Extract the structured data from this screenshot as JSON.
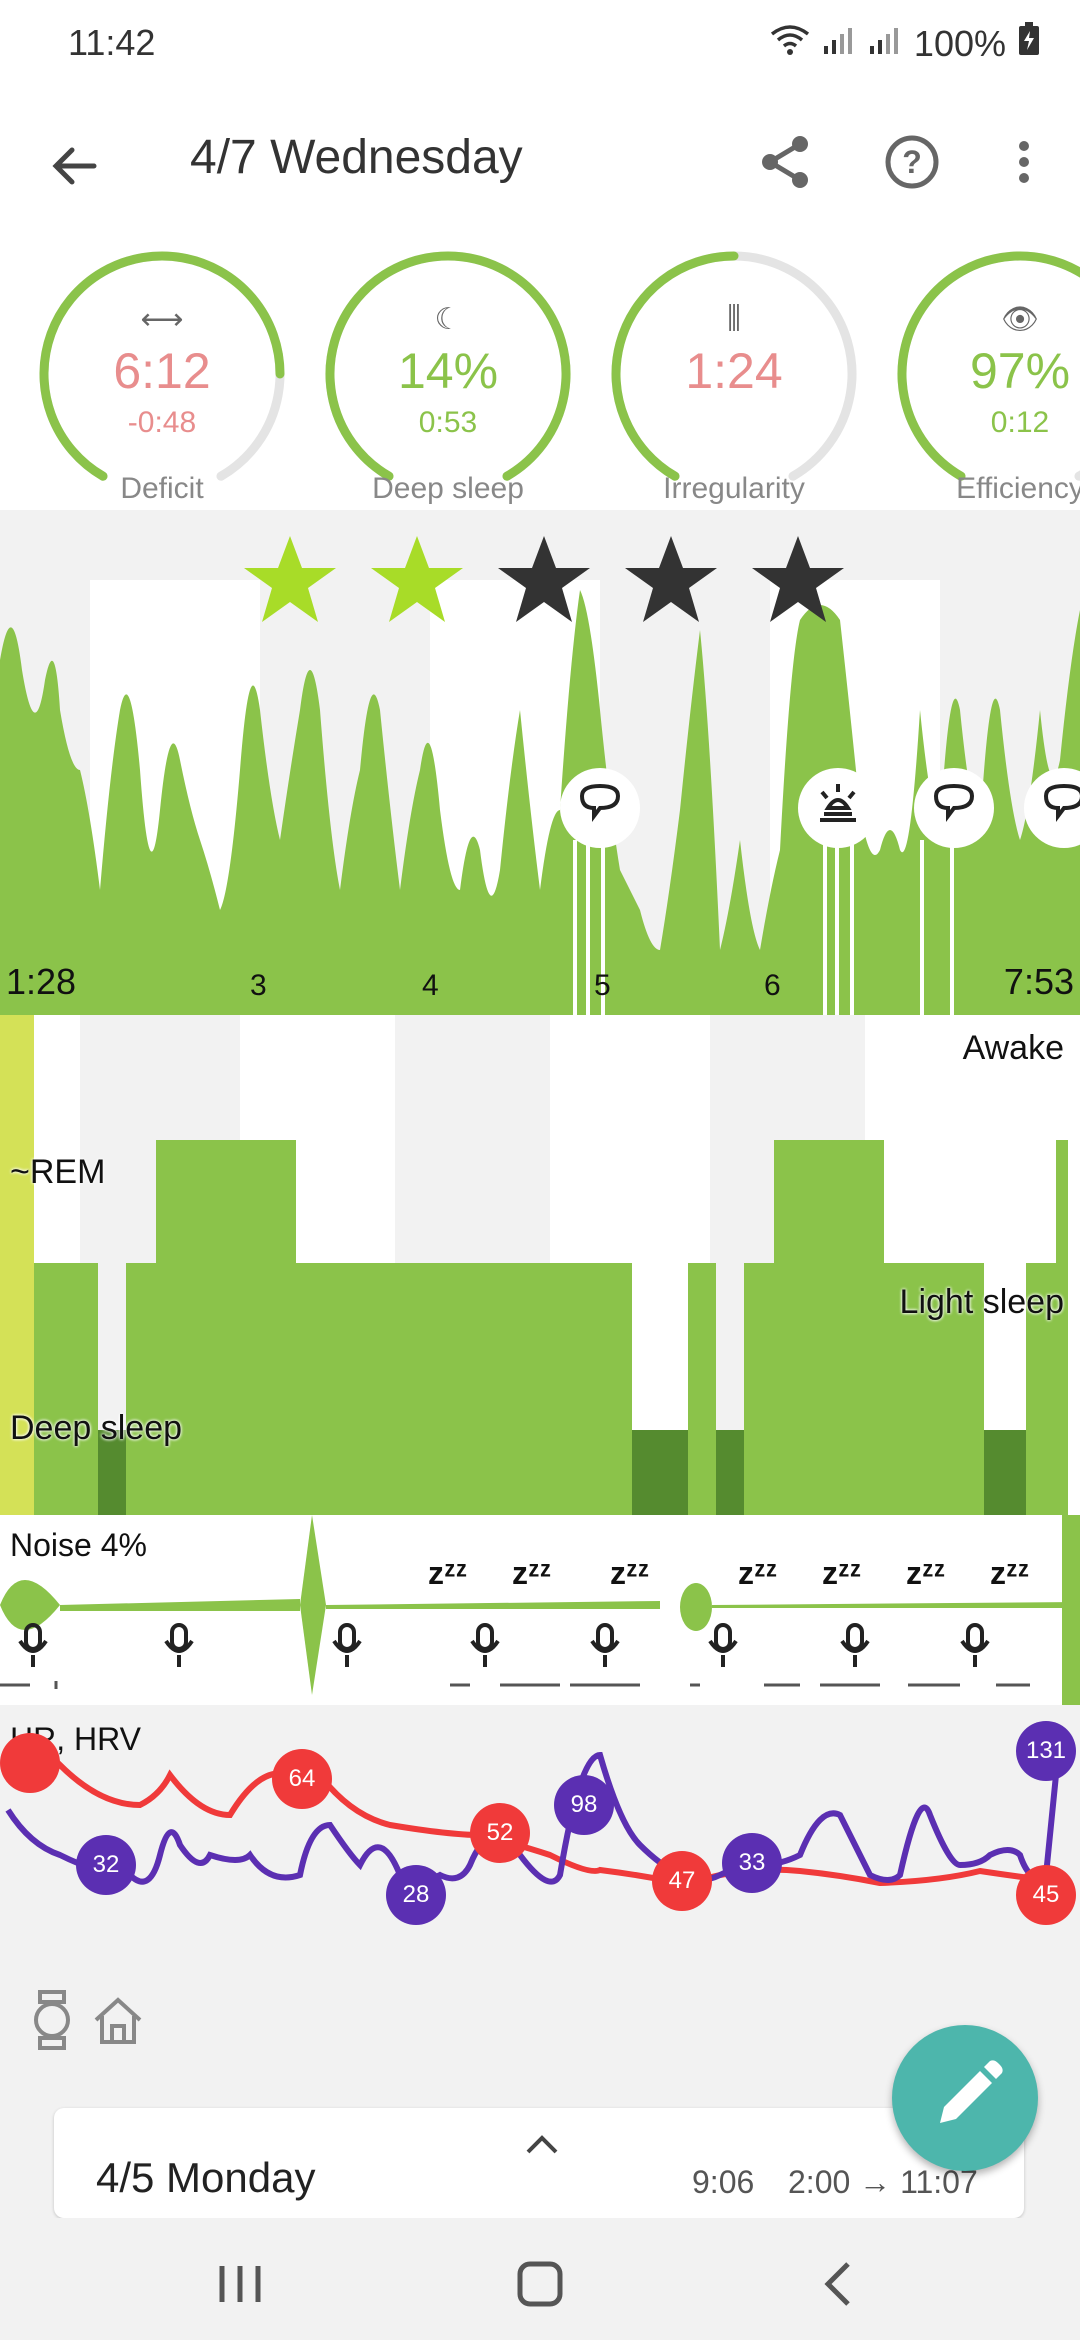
{
  "status": {
    "time": "11:42",
    "battery": "100%"
  },
  "appbar": {
    "title": "4/7 Wednesday"
  },
  "gauges": [
    {
      "icon": "⟷",
      "value": "6:12",
      "sub": "-0:48",
      "label": "Deficit",
      "color": "#e88d8d",
      "fraction": 0.8
    },
    {
      "icon": "☾",
      "value": "14%",
      "sub": "0:53",
      "label": "Deep sleep",
      "color": "#8bc34a",
      "fraction": 1.0
    },
    {
      "icon": "⫼",
      "value": "1:24",
      "sub": "",
      "label": "Irregularity",
      "color": "#e88d8d",
      "fraction": 0.5
    },
    {
      "icon": "👁",
      "value": "97%",
      "sub": "0:12",
      "label": "Efficiency",
      "color": "#8bc34a",
      "fraction": 0.97
    }
  ],
  "rating": {
    "stars": 2,
    "max": 5,
    "on_color": "#a8dc28",
    "off_color": "#333333"
  },
  "timeline": {
    "start": "1:28",
    "end": "7:53",
    "ticks": [
      "3",
      "4",
      "5",
      "6"
    ]
  },
  "hypnogram": {
    "awake": "Awake",
    "rem": "~REM",
    "light": "Light sleep",
    "deep": "Deep sleep"
  },
  "noise": {
    "label": "Noise 4%"
  },
  "hr_hrv": {
    "label": "HR, HRV",
    "hr_values": [
      "64",
      "52",
      "47",
      "45"
    ],
    "hrv_values": [
      "32",
      "28",
      "98",
      "33",
      "131"
    ]
  },
  "card": {
    "date": "4/5 Monday",
    "duration": "9:06",
    "range": "2:00 → 11:07"
  },
  "colors": {
    "green": "#8bc34a",
    "dark_green": "#558b2f",
    "hr": "#f03a3a",
    "hrv": "#5b2fb2",
    "fab": "#4db6ac"
  }
}
